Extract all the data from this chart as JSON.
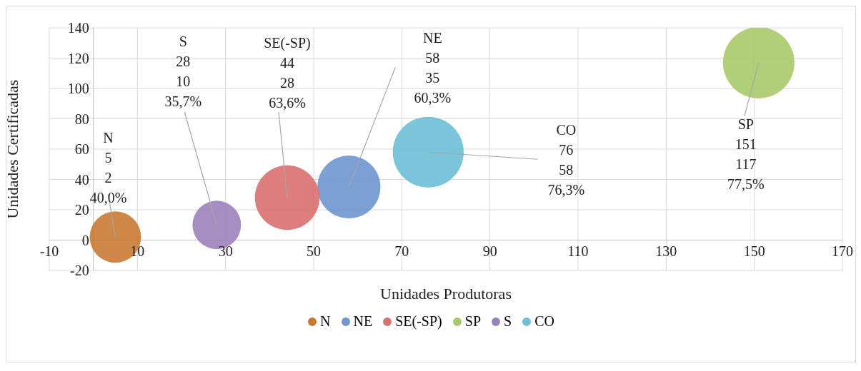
{
  "chart_data": {
    "type": "bubble",
    "xlabel": "Unidades Produtoras",
    "ylabel": "Unidades Certificadas",
    "xlim": [
      -10,
      170
    ],
    "xticks": [
      -10,
      10,
      30,
      50,
      70,
      90,
      110,
      130,
      150,
      170
    ],
    "ylim": [
      -20,
      140
    ],
    "yticks": [
      -20,
      0,
      20,
      40,
      60,
      80,
      100,
      120,
      140
    ],
    "grid": true,
    "legend": "bottom",
    "series": [
      {
        "name": "N",
        "color": "#c97a32",
        "x": [
          5
        ],
        "values": [
          2
        ],
        "sizes": [
          0.516
        ]
      },
      {
        "name": "NE",
        "color": "#6f96cf",
        "x": [
          58
        ],
        "values": [
          35
        ],
        "sizes": [
          0.778
        ]
      },
      {
        "name": "SE(-SP)",
        "color": "#d9706e",
        "x": [
          44
        ],
        "values": [
          28
        ],
        "sizes": [
          0.821
        ]
      },
      {
        "name": "SP",
        "color": "#a9c96a",
        "x": [
          151
        ],
        "values": [
          117
        ],
        "sizes": [
          1
        ]
      },
      {
        "name": "S",
        "color": "#9c82bd",
        "x": [
          28
        ],
        "values": [
          10
        ],
        "sizes": [
          0.461
        ]
      },
      {
        "name": "CO",
        "color": "#6cbfd6",
        "x": [
          76
        ],
        "values": [
          58
        ],
        "sizes": [
          0.985
        ]
      }
    ],
    "annotations": [
      "5",
      {
        "text": "2",
        "x": 5,
        "y": 2
      },
      "40,0%",
      "58",
      "35",
      "60,3%",
      "44",
      "28",
      {
        "text": "63,6%",
        "x": 44,
        "y": 28
      },
      "151",
      "117",
      "77,5%",
      "28",
      "10",
      {
        "text": "35,7%",
        "x": 28,
        "y": 10
      },
      "76",
      "58",
      "76,3%"
    ]
  }
}
